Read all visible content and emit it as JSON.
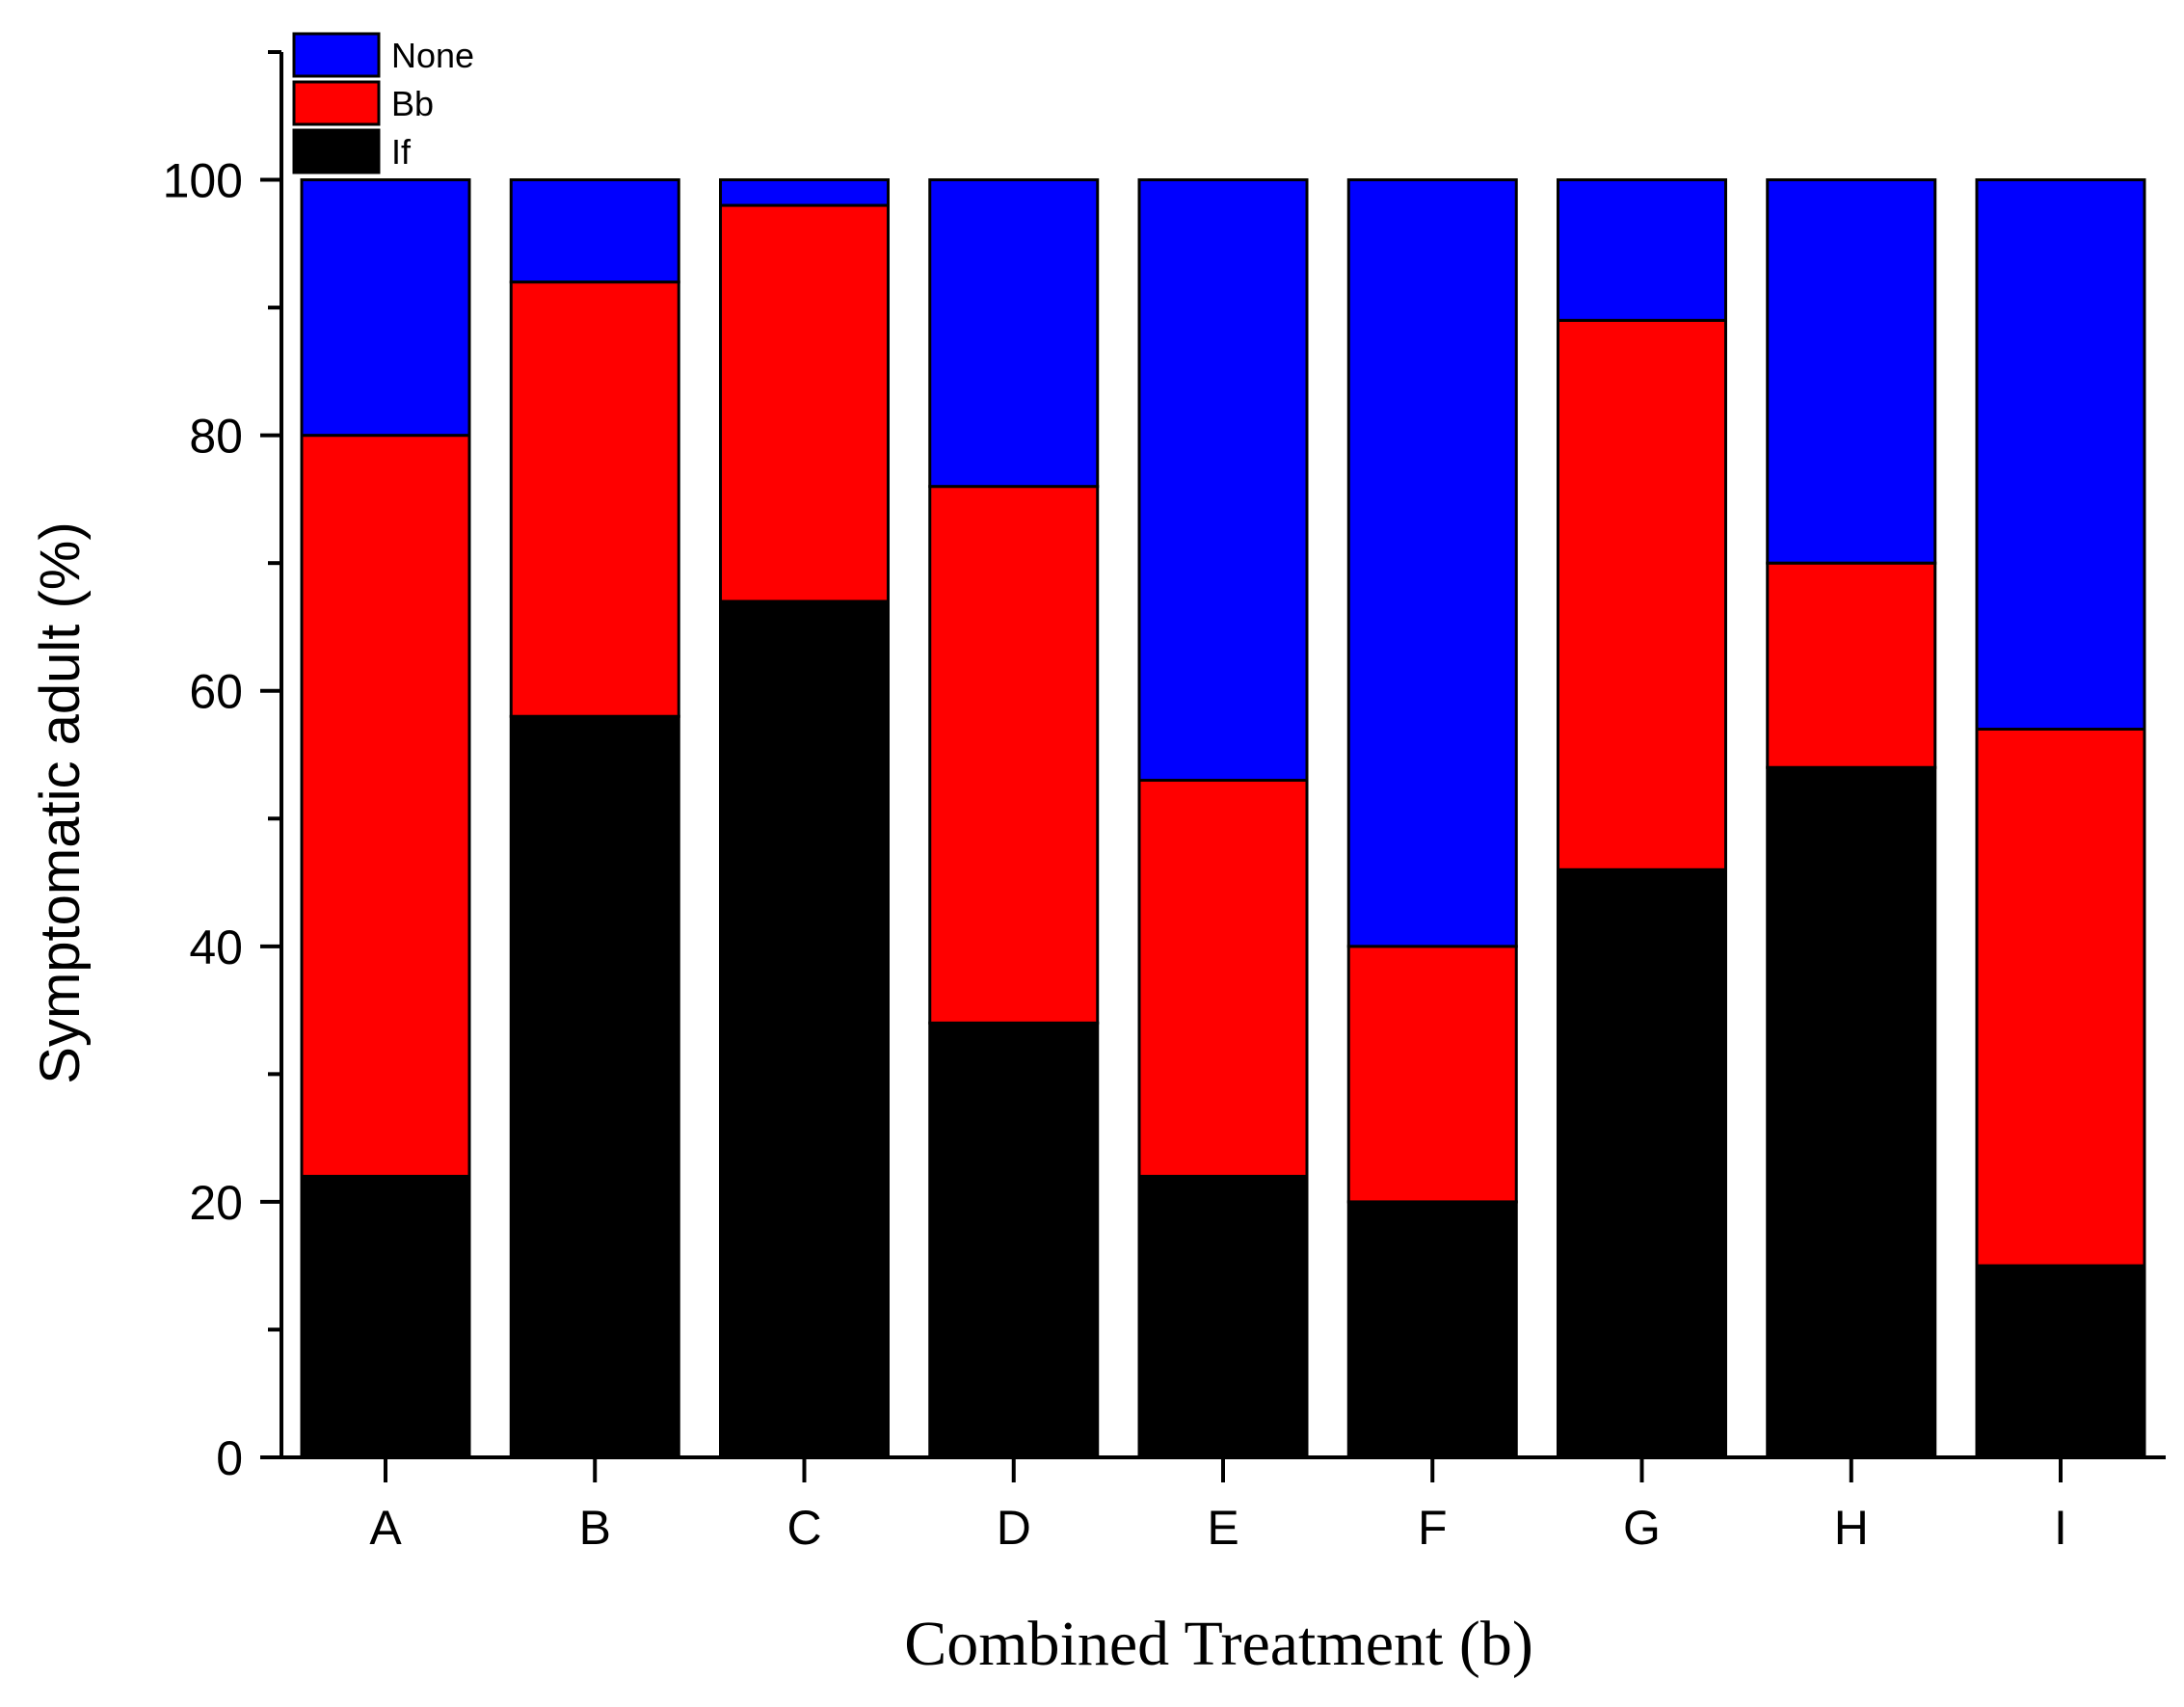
{
  "chart_data": {
    "type": "bar",
    "stacked": true,
    "title": "",
    "xlabel": "Combined Treatment (b)",
    "ylabel": "Symptomatic adult (%)",
    "ylim": [
      0,
      110
    ],
    "yticks": [
      0,
      20,
      40,
      60,
      80,
      100
    ],
    "grid": false,
    "legend_position": "top-left",
    "categories": [
      "A",
      "B",
      "C",
      "D",
      "E",
      "F",
      "G",
      "H",
      "I"
    ],
    "series": [
      {
        "name": "If",
        "color": "#000000",
        "values": [
          22,
          58,
          67,
          34,
          22,
          20,
          46,
          54,
          15
        ]
      },
      {
        "name": "Bb",
        "color": "#ff0000",
        "values": [
          58,
          34,
          31,
          42,
          31,
          20,
          43,
          16,
          42
        ]
      },
      {
        "name": "None",
        "color": "#0000ff",
        "values": [
          20,
          8,
          2,
          24,
          47,
          60,
          11,
          30,
          43
        ]
      }
    ],
    "legend_order": [
      "None",
      "Bb",
      "If"
    ]
  }
}
